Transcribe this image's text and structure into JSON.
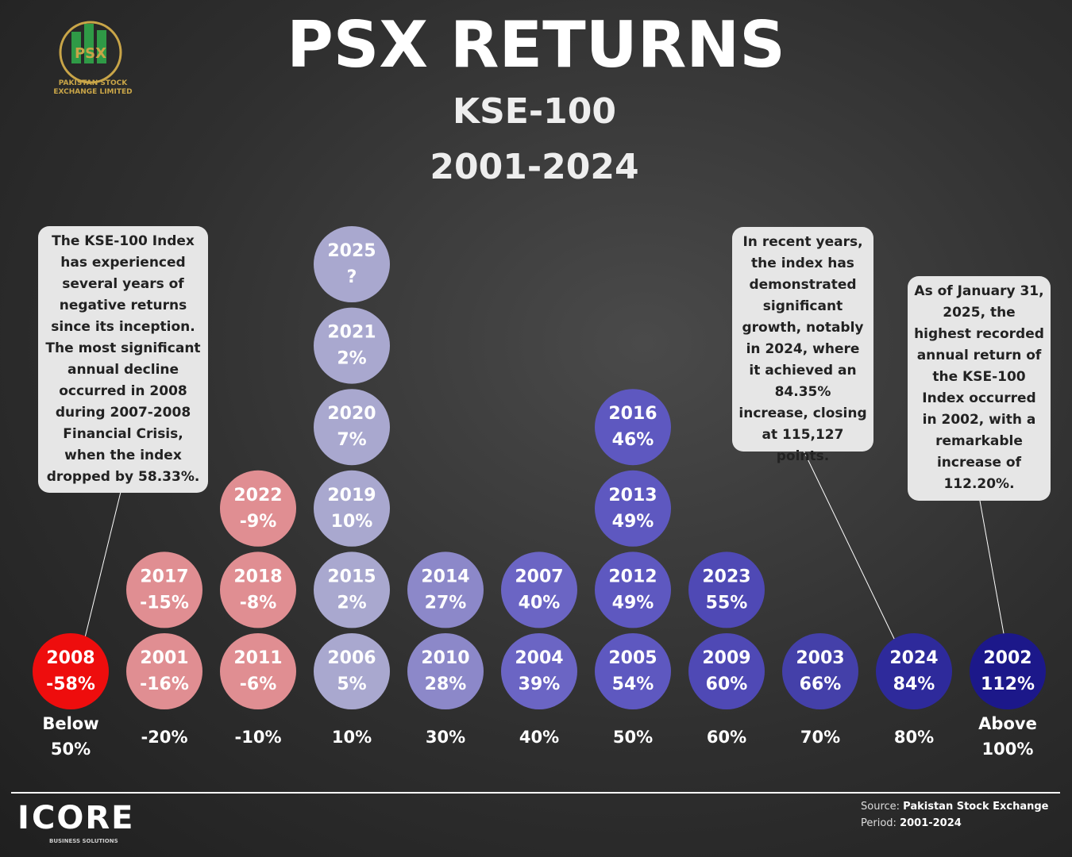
{
  "chart_data": {
    "type": "dot_histogram",
    "title": "PSX RETURNS",
    "subtitle": "KSE-100",
    "period": "2001-2024",
    "categories": [
      "Below 50%",
      "-20%",
      "-10%",
      "10%",
      "30%",
      "40%",
      "50%",
      "60%",
      "70%",
      "80%",
      "Above 100%"
    ],
    "colors": [
      "#ee0d0d",
      "#e08e92",
      "#e08e92",
      "#a9a8cf",
      "#8c88c9",
      "#6b65c4",
      "#5e58c0",
      "#4f49b5",
      "#4440a9",
      "#2e2a9b",
      "#1c188a"
    ],
    "columns": [
      [
        {
          "year": "2008",
          "value": -58,
          "value_label": "-58%"
        }
      ],
      [
        {
          "year": "2001",
          "value": -16,
          "value_label": "-16%"
        },
        {
          "year": "2017",
          "value": -15,
          "value_label": "-15%"
        }
      ],
      [
        {
          "year": "2011",
          "value": -6,
          "value_label": "-6%"
        },
        {
          "year": "2018",
          "value": -8,
          "value_label": "-8%"
        },
        {
          "year": "2022",
          "value": -9,
          "value_label": "-9%"
        }
      ],
      [
        {
          "year": "2006",
          "value": 5,
          "value_label": "5%"
        },
        {
          "year": "2015",
          "value": 2,
          "value_label": "2%"
        },
        {
          "year": "2019",
          "value": 10,
          "value_label": "10%"
        },
        {
          "year": "2020",
          "value": 7,
          "value_label": "7%"
        },
        {
          "year": "2021",
          "value": 2,
          "value_label": "2%"
        },
        {
          "year": "2025",
          "value_label": "?"
        }
      ],
      [
        {
          "year": "2010",
          "value": 28,
          "value_label": "28%"
        },
        {
          "year": "2014",
          "value": 27,
          "value_label": "27%"
        }
      ],
      [
        {
          "year": "2004",
          "value": 39,
          "value_label": "39%"
        },
        {
          "year": "2007",
          "value": 40,
          "value_label": "40%"
        }
      ],
      [
        {
          "year": "2005",
          "value": 54,
          "value_label": "54%"
        },
        {
          "year": "2012",
          "value": 49,
          "value_label": "49%"
        },
        {
          "year": "2013",
          "value": 49,
          "value_label": "49%"
        },
        {
          "year": "2016",
          "value": 46,
          "value_label": "46%"
        }
      ],
      [
        {
          "year": "2009",
          "value": 60,
          "value_label": "60%"
        },
        {
          "year": "2023",
          "value": 55,
          "value_label": "55%"
        }
      ],
      [
        {
          "year": "2003",
          "value": 66,
          "value_label": "66%"
        }
      ],
      [
        {
          "year": "2024",
          "value": 84,
          "value_label": "84%"
        }
      ],
      [
        {
          "year": "2002",
          "value": 112,
          "value_label": "112%"
        }
      ]
    ],
    "annotations": [
      "The KSE-100 Index has experienced several years of negative returns since its inception. The most significant annual decline occurred in 2008 during 2007-2008 Financial Crisis, when the index dropped by 58.33%.",
      "In recent years, the index has demonstrated significant growth, notably in 2024, where it achieved an 84.35% increase, closing at 115,127 points.",
      "As of January 31, 2025, the highest recorded annual return of the KSE-100 Index occurred in 2002, with a remarkable increase of 112.20%."
    ],
    "logo": {
      "mark": "PSX",
      "name": "PAKISTAN STOCK EXCHANGE LIMITED"
    },
    "brand": {
      "name": "CORE",
      "tagline": "BUSINESS SOLUTIONS"
    },
    "source": {
      "source_label": "Source:",
      "source": "Pakistan Stock Exchange",
      "period_label": "Period:",
      "period": "2001-2024"
    }
  }
}
